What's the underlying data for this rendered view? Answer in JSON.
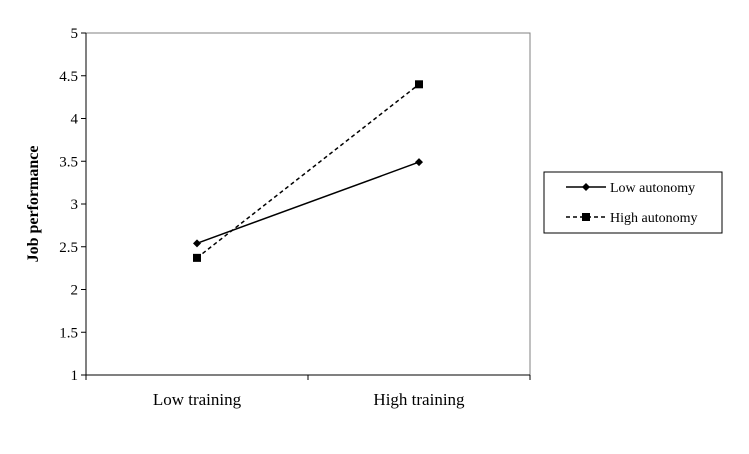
{
  "chart_data": {
    "type": "line",
    "title": "",
    "xlabel": "",
    "ylabel": "Job performance",
    "categories": [
      "Low training",
      "High training"
    ],
    "ylim": [
      1,
      5
    ],
    "yticks": [
      1,
      1.5,
      2,
      2.5,
      3,
      3.5,
      4,
      4.5,
      5
    ],
    "ytick_labels": [
      "1",
      "1.5",
      "2",
      "2.5",
      "3",
      "3.5",
      "4",
      "4.5",
      "5"
    ],
    "grid": false,
    "legend_position": "right",
    "series": [
      {
        "name": "Low autonomy",
        "values": [
          2.54,
          3.49
        ],
        "marker": "diamond",
        "line": "solid",
        "color": "#000000"
      },
      {
        "name": "High autonomy",
        "values": [
          2.37,
          4.4
        ],
        "marker": "square",
        "line": "dashed",
        "color": "#000000"
      }
    ]
  }
}
